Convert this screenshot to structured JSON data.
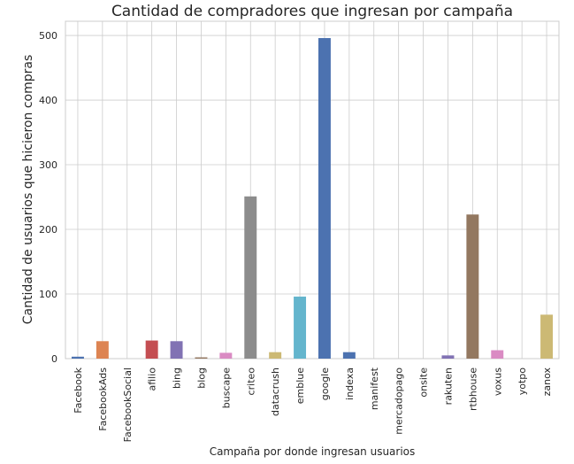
{
  "chart_data": {
    "type": "bar",
    "title": "Cantidad de compradores que ingresan por campaña",
    "xlabel": "Campaña por donde ingresan usuarios",
    "ylabel": "Cantidad de usuarios que hicieron compras",
    "ylim": [
      0,
      522
    ],
    "yticks": [
      0,
      100,
      200,
      300,
      400,
      500
    ],
    "grid": true,
    "legend": "none",
    "categories": [
      "Facebook",
      "FacebookAds",
      "FacebookSocial",
      "afilio",
      "bing",
      "blog",
      "buscape",
      "criteo",
      "datacrush",
      "emblue",
      "google",
      "indexa",
      "manifest",
      "mercadopago",
      "onsite",
      "rakuten",
      "rtbhouse",
      "voxus",
      "yotpo",
      "zanox"
    ],
    "values": [
      3,
      27,
      0,
      28,
      27,
      2,
      9,
      251,
      10,
      96,
      496,
      10,
      0,
      0,
      0,
      5,
      223,
      13,
      0,
      68
    ],
    "colors": [
      "#4c72b0",
      "#dd8452",
      "#55a868",
      "#c44e52",
      "#8172b3",
      "#937860",
      "#da8bc3",
      "#8c8c8c",
      "#ccb974",
      "#64b5cd",
      "#4c72b0",
      "#4c72b0",
      "#dd8452",
      "#55a868",
      "#c44e52",
      "#8172b3",
      "#937860",
      "#da8bc3",
      "#8c8c8c",
      "#ccb974"
    ]
  }
}
